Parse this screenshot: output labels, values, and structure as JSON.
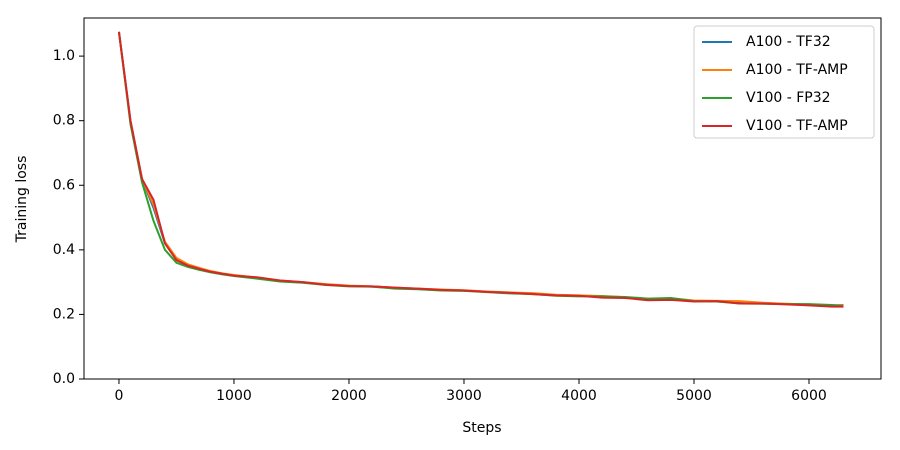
{
  "chart_data": {
    "type": "line",
    "x_label": "Steps",
    "y_label": "Training loss",
    "x": [
      0,
      100,
      200,
      300,
      400,
      500,
      600,
      700,
      800,
      900,
      1000,
      1200,
      1400,
      1600,
      1800,
      2000,
      2200,
      2400,
      2600,
      2800,
      3000,
      3200,
      3400,
      3600,
      3800,
      4000,
      4200,
      4400,
      4600,
      4800,
      5000,
      5200,
      5400,
      5600,
      5800,
      6000,
      6200,
      6300
    ],
    "series": [
      {
        "name": "A100 - TF32",
        "color": "#1f77b4",
        "values": [
          1.075,
          0.8,
          0.62,
          0.53,
          0.42,
          0.37,
          0.352,
          0.342,
          0.333,
          0.326,
          0.321,
          0.312,
          0.304,
          0.299,
          0.293,
          0.288,
          0.286,
          0.282,
          0.279,
          0.276,
          0.274,
          0.27,
          0.267,
          0.264,
          0.26,
          0.258,
          0.255,
          0.252,
          0.248,
          0.247,
          0.242,
          0.24,
          0.237,
          0.235,
          0.232,
          0.23,
          0.228,
          0.229
        ]
      },
      {
        "name": "A100 - TF-AMP",
        "color": "#ff7f0e",
        "values": [
          1.075,
          0.8,
          0.62,
          0.54,
          0.425,
          0.375,
          0.355,
          0.344,
          0.334,
          0.327,
          0.322,
          0.314,
          0.305,
          0.3,
          0.294,
          0.289,
          0.287,
          0.283,
          0.28,
          0.277,
          0.275,
          0.271,
          0.268,
          0.266,
          0.261,
          0.259,
          0.257,
          0.253,
          0.248,
          0.25,
          0.243,
          0.242,
          0.241,
          0.236,
          0.233,
          0.231,
          0.228,
          0.228
        ]
      },
      {
        "name": "V100 - FP32",
        "color": "#2ca02c",
        "values": [
          1.075,
          0.79,
          0.61,
          0.49,
          0.4,
          0.36,
          0.347,
          0.338,
          0.33,
          0.324,
          0.319,
          0.311,
          0.302,
          0.298,
          0.291,
          0.287,
          0.286,
          0.28,
          0.278,
          0.274,
          0.273,
          0.269,
          0.265,
          0.263,
          0.258,
          0.256,
          0.256,
          0.254,
          0.249,
          0.251,
          0.241,
          0.24,
          0.234,
          0.233,
          0.232,
          0.232,
          0.229,
          0.225
        ]
      },
      {
        "name": "V100 - TF-AMP",
        "color": "#d62728",
        "values": [
          1.075,
          0.8,
          0.62,
          0.555,
          0.42,
          0.368,
          0.351,
          0.341,
          0.332,
          0.326,
          0.32,
          0.315,
          0.305,
          0.3,
          0.292,
          0.288,
          0.287,
          0.283,
          0.28,
          0.276,
          0.274,
          0.27,
          0.267,
          0.263,
          0.259,
          0.258,
          0.252,
          0.251,
          0.244,
          0.245,
          0.24,
          0.241,
          0.234,
          0.234,
          0.231,
          0.228,
          0.224,
          0.224
        ]
      }
    ],
    "xlim": [
      -304,
      6626
    ],
    "ylim": [
      0,
      1.118
    ],
    "xticks": [
      0,
      1000,
      2000,
      3000,
      4000,
      5000,
      6000
    ],
    "yticks": [
      {
        "value": 0,
        "label": "0.0"
      },
      {
        "value": 0.2,
        "label": "0.2"
      },
      {
        "value": 0.4,
        "label": "0.4"
      },
      {
        "value": 0.6,
        "label": "0.6"
      },
      {
        "value": 0.8,
        "label": "0.8"
      },
      {
        "value": 1.0,
        "label": "1.0"
      }
    ],
    "legend": "upper right"
  }
}
